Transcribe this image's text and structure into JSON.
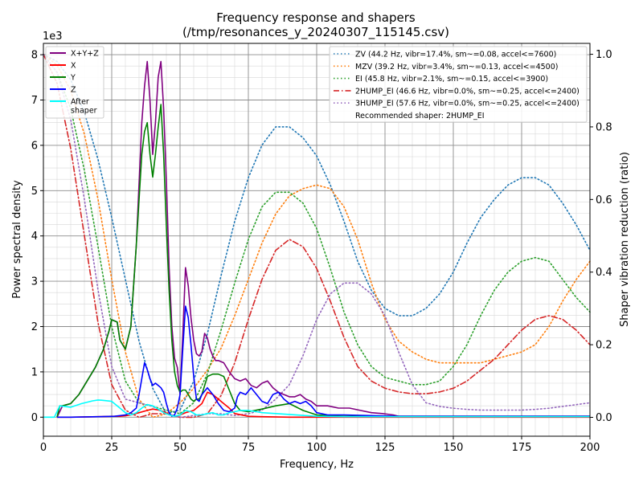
{
  "chart_data": {
    "type": "line",
    "title": "Frequency response and shapers",
    "subtitle": "(/tmp/resonances_y_20240307_115145.csv)",
    "xlabel": "Frequency, Hz",
    "ylabel": "Power spectral density",
    "y2label": "Shaper vibration reduction (ratio)",
    "y_offset_text": "1e3",
    "xlim": [
      0,
      200
    ],
    "ylim": [
      -0.42,
      8.25
    ],
    "y2lim": [
      -0.052,
      1.03
    ],
    "x_ticks": [
      0,
      25,
      50,
      75,
      100,
      125,
      150,
      175,
      200
    ],
    "x_tick_labels": [
      "0",
      "25",
      "50",
      "75",
      "100",
      "125",
      "150",
      "175",
      "200"
    ],
    "y_ticks": [
      0,
      1,
      2,
      3,
      4,
      5,
      6,
      7,
      8
    ],
    "y_tick_labels": [
      "0",
      "1",
      "2",
      "3",
      "4",
      "5",
      "6",
      "7",
      "8"
    ],
    "y2_ticks": [
      0,
      0.2,
      0.4,
      0.6,
      0.8,
      1.0
    ],
    "y2_tick_labels": [
      "0.0",
      "0.2",
      "0.4",
      "0.6",
      "0.8",
      "1.0"
    ],
    "grid": true,
    "legend_left_placement": "upper-left",
    "legend_right_placement": "upper-right",
    "psd_series": [
      {
        "name": "X+Y+Z",
        "color": "#800080",
        "style": "solid",
        "x": [
          5,
          7,
          10,
          13,
          16,
          19,
          22,
          24,
          25,
          27,
          28,
          30,
          32,
          34,
          36,
          37,
          38,
          39,
          40,
          41,
          42,
          43,
          44,
          45,
          46,
          47,
          48,
          49,
          50,
          51,
          52,
          53,
          54,
          55,
          56,
          57,
          58,
          59,
          60,
          61,
          62,
          63,
          64,
          66,
          68,
          70,
          72,
          74,
          76,
          78,
          80,
          82,
          84,
          86,
          88,
          90,
          92,
          94,
          96,
          98,
          100,
          104,
          108,
          112,
          116,
          120,
          124,
          128,
          130,
          132,
          134,
          140,
          150,
          170,
          200
        ],
        "y": [
          0,
          0.25,
          0.3,
          0.5,
          0.8,
          1.1,
          1.5,
          1.9,
          2.15,
          2.1,
          1.7,
          1.5,
          2,
          3.8,
          6.5,
          7.3,
          7.85,
          7,
          5.8,
          6.5,
          7.5,
          7.85,
          6.8,
          5.2,
          3.3,
          2,
          1.3,
          1.1,
          0.5,
          1.8,
          3.3,
          2.9,
          2.2,
          1.7,
          1.4,
          1.35,
          1.45,
          1.85,
          1.75,
          1.5,
          1.35,
          1.25,
          1.25,
          1.2,
          1.0,
          0.85,
          0.8,
          0.85,
          0.7,
          0.65,
          0.75,
          0.8,
          0.65,
          0.55,
          0.5,
          0.45,
          0.45,
          0.5,
          0.4,
          0.35,
          0.25,
          0.25,
          0.2,
          0.2,
          0.15,
          0.1,
          0.08,
          0.05,
          0.02,
          0.02,
          0.02,
          0.02,
          0.02,
          0.02,
          0.02
        ]
      },
      {
        "name": "X",
        "color": "#ff0000",
        "style": "solid",
        "x": [
          5,
          10,
          20,
          25,
          28,
          30,
          32,
          35,
          38,
          40,
          42,
          44,
          46,
          48,
          50,
          52,
          55,
          58,
          60,
          62,
          65,
          68,
          70,
          75,
          80,
          90,
          110,
          200
        ],
        "y": [
          0,
          0,
          0.01,
          0.02,
          0.02,
          0.03,
          0.05,
          0.1,
          0.15,
          0.18,
          0.16,
          0.12,
          0.06,
          0.02,
          0.05,
          0.1,
          0.15,
          0.3,
          0.55,
          0.5,
          0.35,
          0.2,
          0.08,
          0.02,
          0.01,
          0,
          0,
          0
        ]
      },
      {
        "name": "Y",
        "color": "#008000",
        "style": "solid",
        "x": [
          5,
          6,
          7,
          10,
          13,
          16,
          19,
          22,
          24,
          25,
          27,
          28,
          30,
          32,
          34,
          36,
          37,
          38,
          39,
          40,
          41,
          42,
          43,
          44,
          45,
          46,
          47,
          48,
          49,
          50,
          51,
          52,
          53,
          54,
          55,
          56,
          57,
          58,
          60,
          62,
          64,
          66,
          68,
          70,
          72,
          75,
          80,
          85,
          90,
          95,
          100,
          110,
          120,
          200
        ],
        "y": [
          0,
          0.25,
          0.25,
          0.3,
          0.5,
          0.8,
          1.1,
          1.5,
          1.9,
          2.15,
          2.1,
          1.7,
          1.5,
          2,
          3.8,
          5.8,
          6.3,
          6.5,
          5.8,
          5.3,
          5.8,
          6.4,
          6.9,
          5.8,
          4.2,
          2.8,
          1.7,
          1.0,
          0.7,
          0.55,
          0.6,
          0.6,
          0.5,
          0.4,
          0.35,
          0.4,
          0.4,
          0.5,
          0.9,
          0.95,
          0.95,
          0.9,
          0.6,
          0.3,
          0.15,
          0.12,
          0.18,
          0.25,
          0.3,
          0.15,
          0.05,
          0.02,
          0.02,
          0.02
        ]
      },
      {
        "name": "Z",
        "color": "#0000ff",
        "style": "solid",
        "x": [
          5,
          10,
          20,
          26,
          30,
          32,
          34,
          35,
          36,
          37,
          38,
          39,
          40,
          41,
          42,
          43,
          44,
          45,
          46,
          47,
          48,
          49,
          50,
          51,
          52,
          53,
          54,
          55,
          56,
          57,
          58,
          60,
          62,
          64,
          66,
          68,
          70,
          71,
          72,
          74,
          76,
          78,
          80,
          82,
          84,
          86,
          88,
          90,
          92,
          94,
          96,
          98,
          100,
          104,
          110,
          130,
          200
        ],
        "y": [
          0,
          0,
          0.01,
          0.02,
          0.05,
          0.1,
          0.2,
          0.5,
          0.85,
          1.2,
          1.05,
          0.85,
          0.7,
          0.75,
          0.7,
          0.65,
          0.55,
          0.3,
          0.1,
          0.02,
          0.05,
          0.2,
          0.5,
          1.5,
          2.45,
          2.2,
          1.6,
          0.9,
          0.4,
          0.35,
          0.5,
          0.65,
          0.5,
          0.3,
          0.15,
          0.12,
          0.2,
          0.45,
          0.55,
          0.5,
          0.65,
          0.5,
          0.35,
          0.3,
          0.5,
          0.55,
          0.4,
          0.3,
          0.35,
          0.3,
          0.35,
          0.25,
          0.1,
          0.05,
          0.05,
          0.02,
          0.02
        ]
      },
      {
        "name": "After\nshaper",
        "color": "#00ffff",
        "style": "solid",
        "x": [
          0,
          4,
          6,
          10,
          14,
          18,
          20,
          22,
          25,
          28,
          30,
          32,
          34,
          36,
          38,
          40,
          42,
          44,
          46,
          48,
          50,
          52,
          54,
          56,
          58,
          60,
          62,
          64,
          66,
          68,
          70,
          72,
          75,
          78,
          80,
          85,
          90,
          95,
          100,
          110,
          120,
          200
        ],
        "y": [
          0,
          0,
          0.25,
          0.22,
          0.3,
          0.36,
          0.38,
          0.37,
          0.35,
          0.2,
          0.1,
          0.05,
          0.1,
          0.2,
          0.28,
          0.25,
          0.18,
          0.1,
          0.05,
          0.02,
          0.05,
          0.15,
          0.12,
          0.05,
          0.05,
          0.08,
          0.1,
          0.05,
          0.05,
          0.1,
          0.12,
          0.15,
          0.15,
          0.12,
          0.1,
          0.08,
          0.06,
          0.04,
          0.02,
          0.01,
          0.01,
          0.01
        ]
      }
    ],
    "shaper_series": [
      {
        "name": "ZV (44.2 Hz, vibr=17.4%, sm~=0.08, accel<=7600)",
        "color": "#1f77b4",
        "style": "dotted",
        "x": [
          0,
          5,
          10,
          15,
          20,
          25,
          30,
          35,
          40,
          45,
          50,
          55,
          60,
          65,
          70,
          75,
          80,
          85,
          90,
          95,
          100,
          105,
          110,
          115,
          120,
          125,
          130,
          135,
          140,
          145,
          150,
          155,
          160,
          165,
          170,
          175,
          180,
          185,
          190,
          195,
          200
        ],
        "y": [
          1.0,
          0.98,
          0.93,
          0.84,
          0.71,
          0.55,
          0.38,
          0.21,
          0.08,
          0.01,
          0.02,
          0.1,
          0.23,
          0.39,
          0.54,
          0.66,
          0.75,
          0.8,
          0.8,
          0.77,
          0.72,
          0.64,
          0.54,
          0.43,
          0.35,
          0.3,
          0.28,
          0.28,
          0.3,
          0.34,
          0.4,
          0.48,
          0.55,
          0.6,
          0.64,
          0.66,
          0.66,
          0.64,
          0.59,
          0.53,
          0.46
        ]
      },
      {
        "name": "MZV (39.2 Hz, vibr=3.4%, sm~=0.13, accel<=4500)",
        "color": "#ff7f0e",
        "style": "dotted",
        "x": [
          0,
          5,
          10,
          15,
          20,
          25,
          30,
          35,
          40,
          45,
          50,
          55,
          60,
          65,
          70,
          75,
          80,
          85,
          90,
          95,
          100,
          105,
          110,
          115,
          120,
          125,
          130,
          135,
          140,
          145,
          150,
          155,
          160,
          165,
          170,
          175,
          180,
          185,
          190,
          195,
          200
        ],
        "y": [
          1.0,
          0.97,
          0.9,
          0.78,
          0.6,
          0.38,
          0.18,
          0.05,
          0.0,
          0.01,
          0.04,
          0.08,
          0.13,
          0.19,
          0.28,
          0.38,
          0.48,
          0.56,
          0.61,
          0.63,
          0.64,
          0.63,
          0.58,
          0.49,
          0.37,
          0.27,
          0.21,
          0.18,
          0.16,
          0.15,
          0.15,
          0.15,
          0.15,
          0.16,
          0.17,
          0.18,
          0.2,
          0.25,
          0.32,
          0.38,
          0.43
        ]
      },
      {
        "name": "EI (45.8 Hz, vibr=2.1%, sm~=0.15, accel<=3900)",
        "color": "#2ca02c",
        "style": "dotted",
        "x": [
          0,
          5,
          10,
          15,
          20,
          25,
          30,
          35,
          40,
          45,
          50,
          55,
          60,
          65,
          70,
          75,
          80,
          85,
          90,
          95,
          100,
          105,
          110,
          115,
          120,
          125,
          130,
          135,
          140,
          145,
          150,
          155,
          160,
          165,
          170,
          175,
          180,
          185,
          190,
          195,
          200
        ],
        "y": [
          1.0,
          0.95,
          0.85,
          0.68,
          0.47,
          0.25,
          0.1,
          0.04,
          0.03,
          0.02,
          0.01,
          0.04,
          0.12,
          0.24,
          0.37,
          0.49,
          0.58,
          0.62,
          0.62,
          0.59,
          0.52,
          0.41,
          0.29,
          0.2,
          0.14,
          0.11,
          0.1,
          0.09,
          0.09,
          0.1,
          0.14,
          0.2,
          0.28,
          0.35,
          0.4,
          0.43,
          0.44,
          0.43,
          0.38,
          0.33,
          0.29
        ]
      },
      {
        "name": "2HUMP_EI (46.6 Hz, vibr=0.0%, sm~=0.25, accel<=2400)",
        "color": "#d62728",
        "style": "dashdot",
        "x": [
          0,
          5,
          10,
          15,
          20,
          25,
          30,
          35,
          40,
          45,
          50,
          55,
          60,
          65,
          70,
          75,
          80,
          85,
          90,
          95,
          100,
          105,
          110,
          115,
          120,
          125,
          130,
          135,
          140,
          145,
          150,
          155,
          160,
          165,
          170,
          175,
          180,
          185,
          190,
          195,
          200
        ],
        "y": [
          1.0,
          0.92,
          0.74,
          0.5,
          0.26,
          0.09,
          0.02,
          0.0,
          0.01,
          0.01,
          0.0,
          0.0,
          0.01,
          0.06,
          0.15,
          0.27,
          0.38,
          0.46,
          0.49,
          0.47,
          0.41,
          0.32,
          0.22,
          0.14,
          0.1,
          0.08,
          0.07,
          0.065,
          0.065,
          0.07,
          0.08,
          0.1,
          0.13,
          0.16,
          0.2,
          0.24,
          0.27,
          0.28,
          0.27,
          0.24,
          0.2
        ]
      },
      {
        "name": "3HUMP_EI (57.6 Hz, vibr=0.0%, sm~=0.25, accel<=2400)",
        "color": "#9467bd",
        "style": "dotted",
        "x": [
          0,
          5,
          10,
          15,
          20,
          25,
          30,
          35,
          40,
          45,
          50,
          55,
          60,
          65,
          70,
          75,
          80,
          85,
          90,
          95,
          100,
          105,
          110,
          115,
          120,
          125,
          130,
          135,
          140,
          145,
          150,
          155,
          160,
          165,
          170,
          175,
          180,
          185,
          190,
          195,
          200
        ],
        "y": [
          1.0,
          0.95,
          0.82,
          0.6,
          0.35,
          0.14,
          0.05,
          0.04,
          0.03,
          0.01,
          0.0,
          0.005,
          0.01,
          0.01,
          0.005,
          0.01,
          0.02,
          0.05,
          0.09,
          0.17,
          0.27,
          0.34,
          0.37,
          0.37,
          0.34,
          0.28,
          0.18,
          0.09,
          0.04,
          0.03,
          0.025,
          0.022,
          0.02,
          0.02,
          0.02,
          0.02,
          0.022,
          0.025,
          0.03,
          0.035,
          0.04
        ]
      }
    ],
    "recommended_text": "Recommended shaper: 2HUMP_EI"
  }
}
